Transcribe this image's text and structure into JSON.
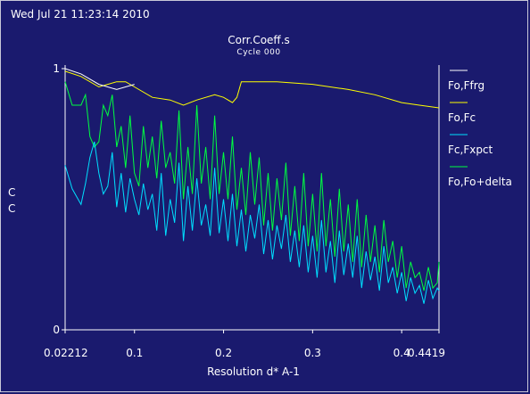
{
  "header": {
    "timestamp": "Wed Jul 21 11:23:14 2010"
  },
  "chart_data": {
    "type": "line",
    "title": "Corr.Coeff.s",
    "subtitle": "Cycle 000",
    "xlabel": "Resolution d* A-1",
    "ylabel_lines": [
      "C",
      "C"
    ],
    "xlim": [
      0.02212,
      0.4419
    ],
    "ylim": [
      0,
      1
    ],
    "x_ticks": [
      {
        "value": 0.02212,
        "label": "0.02212"
      },
      {
        "value": 0.1,
        "label": "0.1"
      },
      {
        "value": 0.2,
        "label": "0.2"
      },
      {
        "value": 0.3,
        "label": "0.3"
      },
      {
        "value": 0.4,
        "label": "0.4"
      },
      {
        "value": 0.4419,
        "label": "0.4419"
      }
    ],
    "y_ticks": [
      {
        "value": 0,
        "label": "0"
      },
      {
        "value": 1,
        "label": "1"
      }
    ],
    "grid": false,
    "legend_position": "right",
    "series": [
      {
        "name": "Fo,Ffrg",
        "color": "#ffffff",
        "x": [
          0.02212,
          0.04,
          0.06,
          0.08,
          0.1
        ],
        "y": [
          1.0,
          0.98,
          0.94,
          0.92,
          0.94
        ]
      },
      {
        "name": "Fo,Fc",
        "color": "#ffff00",
        "x": [
          0.02212,
          0.04,
          0.06,
          0.07,
          0.08,
          0.09,
          0.1,
          0.12,
          0.14,
          0.155,
          0.17,
          0.19,
          0.2,
          0.21,
          0.215,
          0.22,
          0.26,
          0.3,
          0.34,
          0.37,
          0.4,
          0.42,
          0.4419
        ],
        "y": [
          0.99,
          0.97,
          0.93,
          0.94,
          0.95,
          0.95,
          0.93,
          0.89,
          0.88,
          0.86,
          0.88,
          0.9,
          0.89,
          0.87,
          0.89,
          0.95,
          0.95,
          0.94,
          0.92,
          0.9,
          0.87,
          0.86,
          0.85
        ]
      },
      {
        "name": "Fc,Fxpct",
        "color": "#00e0ff",
        "x": [
          0.02212,
          0.03,
          0.04,
          0.045,
          0.05,
          0.055,
          0.06,
          0.065,
          0.07,
          0.075,
          0.08,
          0.085,
          0.09,
          0.095,
          0.1,
          0.105,
          0.11,
          0.115,
          0.12,
          0.125,
          0.13,
          0.135,
          0.14,
          0.145,
          0.15,
          0.155,
          0.16,
          0.165,
          0.17,
          0.175,
          0.18,
          0.185,
          0.19,
          0.195,
          0.2,
          0.205,
          0.21,
          0.215,
          0.22,
          0.225,
          0.23,
          0.235,
          0.24,
          0.245,
          0.25,
          0.255,
          0.26,
          0.265,
          0.27,
          0.275,
          0.28,
          0.285,
          0.29,
          0.295,
          0.3,
          0.305,
          0.31,
          0.315,
          0.32,
          0.325,
          0.33,
          0.335,
          0.34,
          0.345,
          0.35,
          0.355,
          0.36,
          0.365,
          0.37,
          0.375,
          0.38,
          0.385,
          0.39,
          0.395,
          0.4,
          0.405,
          0.41,
          0.415,
          0.42,
          0.425,
          0.43,
          0.435,
          0.44,
          0.4419
        ],
        "y": [
          0.63,
          0.54,
          0.48,
          0.56,
          0.66,
          0.72,
          0.6,
          0.52,
          0.55,
          0.68,
          0.47,
          0.6,
          0.45,
          0.58,
          0.5,
          0.44,
          0.56,
          0.46,
          0.52,
          0.38,
          0.6,
          0.36,
          0.5,
          0.41,
          0.64,
          0.34,
          0.55,
          0.38,
          0.58,
          0.4,
          0.48,
          0.36,
          0.62,
          0.37,
          0.5,
          0.34,
          0.52,
          0.32,
          0.46,
          0.3,
          0.44,
          0.35,
          0.48,
          0.29,
          0.42,
          0.27,
          0.4,
          0.31,
          0.44,
          0.26,
          0.38,
          0.24,
          0.4,
          0.22,
          0.36,
          0.2,
          0.42,
          0.22,
          0.34,
          0.18,
          0.38,
          0.21,
          0.33,
          0.2,
          0.36,
          0.16,
          0.3,
          0.19,
          0.28,
          0.15,
          0.32,
          0.18,
          0.24,
          0.14,
          0.22,
          0.11,
          0.2,
          0.14,
          0.17,
          0.1,
          0.19,
          0.12,
          0.16,
          0.15
        ]
      },
      {
        "name": "Fo,Fo+delta",
        "color": "#00ff40",
        "x": [
          0.02212,
          0.03,
          0.04,
          0.045,
          0.05,
          0.055,
          0.06,
          0.065,
          0.07,
          0.075,
          0.08,
          0.085,
          0.09,
          0.095,
          0.1,
          0.105,
          0.11,
          0.115,
          0.12,
          0.125,
          0.13,
          0.135,
          0.14,
          0.145,
          0.15,
          0.155,
          0.16,
          0.165,
          0.17,
          0.175,
          0.18,
          0.185,
          0.19,
          0.195,
          0.2,
          0.205,
          0.21,
          0.215,
          0.22,
          0.225,
          0.23,
          0.235,
          0.24,
          0.245,
          0.25,
          0.255,
          0.26,
          0.265,
          0.27,
          0.275,
          0.28,
          0.285,
          0.29,
          0.295,
          0.3,
          0.305,
          0.31,
          0.315,
          0.32,
          0.325,
          0.33,
          0.335,
          0.34,
          0.345,
          0.35,
          0.355,
          0.36,
          0.365,
          0.37,
          0.375,
          0.38,
          0.385,
          0.39,
          0.395,
          0.4,
          0.405,
          0.41,
          0.415,
          0.42,
          0.425,
          0.43,
          0.435,
          0.44,
          0.4419
        ],
        "y": [
          0.95,
          0.86,
          0.86,
          0.9,
          0.74,
          0.7,
          0.72,
          0.86,
          0.82,
          0.9,
          0.7,
          0.78,
          0.62,
          0.82,
          0.6,
          0.55,
          0.78,
          0.62,
          0.74,
          0.58,
          0.8,
          0.62,
          0.68,
          0.56,
          0.84,
          0.5,
          0.7,
          0.52,
          0.86,
          0.56,
          0.7,
          0.5,
          0.82,
          0.52,
          0.68,
          0.5,
          0.74,
          0.46,
          0.62,
          0.44,
          0.68,
          0.48,
          0.66,
          0.4,
          0.6,
          0.38,
          0.58,
          0.42,
          0.64,
          0.36,
          0.55,
          0.34,
          0.6,
          0.32,
          0.52,
          0.3,
          0.6,
          0.32,
          0.5,
          0.28,
          0.54,
          0.3,
          0.48,
          0.26,
          0.5,
          0.24,
          0.44,
          0.26,
          0.4,
          0.22,
          0.42,
          0.26,
          0.34,
          0.2,
          0.32,
          0.16,
          0.26,
          0.2,
          0.22,
          0.15,
          0.24,
          0.16,
          0.18,
          0.26
        ]
      }
    ]
  }
}
